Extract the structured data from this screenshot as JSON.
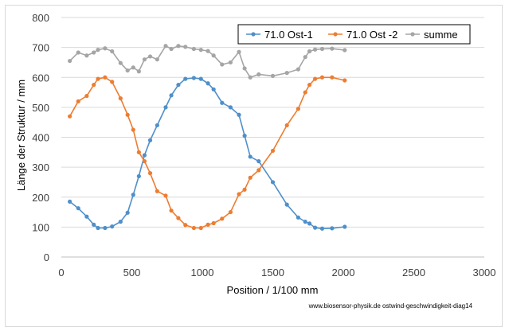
{
  "chart_data": {
    "type": "line",
    "xlabel": "Position  /  1/100 mm",
    "ylabel": "Länge der Struktur / mm",
    "xlim": [
      0,
      3000
    ],
    "ylim": [
      0,
      800
    ],
    "xticks": [
      0,
      500,
      1000,
      1500,
      2000,
      2500,
      3000
    ],
    "yticks": [
      0,
      100,
      200,
      300,
      400,
      500,
      600,
      700,
      800
    ],
    "grid": "horizontal",
    "legend_position": "top-right",
    "footnote": "www.biosensor-physik.de  ostwind-geschwindigkeit-diag14",
    "series": [
      {
        "name": "71.0 Ost-1",
        "color": "#4f8fca",
        "x": [
          60,
          120,
          180,
          230,
          260,
          310,
          360,
          420,
          470,
          510,
          550,
          590,
          630,
          680,
          740,
          780,
          830,
          880,
          940,
          990,
          1040,
          1080,
          1140,
          1200,
          1260,
          1300,
          1340,
          1400,
          1500,
          1600,
          1680,
          1730,
          1760,
          1800,
          1850,
          1920,
          2010
        ],
        "y": [
          185,
          163,
          135,
          108,
          97,
          97,
          102,
          118,
          148,
          208,
          270,
          340,
          390,
          440,
          500,
          540,
          575,
          595,
          598,
          595,
          580,
          560,
          515,
          500,
          475,
          405,
          335,
          320,
          250,
          175,
          132,
          118,
          112,
          98,
          95,
          96,
          101
        ]
      },
      {
        "name": "71.0 Ost -2",
        "color": "#ed7d31",
        "x": [
          60,
          120,
          180,
          230,
          260,
          310,
          360,
          420,
          470,
          510,
          550,
          590,
          630,
          680,
          740,
          780,
          830,
          880,
          940,
          990,
          1040,
          1080,
          1140,
          1200,
          1260,
          1300,
          1340,
          1400,
          1500,
          1600,
          1680,
          1730,
          1760,
          1800,
          1850,
          1920,
          2010
        ],
        "y": [
          470,
          520,
          538,
          575,
          595,
          600,
          585,
          530,
          475,
          425,
          350,
          320,
          280,
          220,
          205,
          155,
          130,
          107,
          97,
          97,
          108,
          113,
          128,
          150,
          210,
          225,
          265,
          290,
          355,
          440,
          495,
          550,
          575,
          595,
          600,
          600,
          590
        ]
      },
      {
        "name": "summe",
        "color": "#a5a5a5",
        "x": [
          60,
          120,
          180,
          230,
          260,
          310,
          360,
          420,
          470,
          510,
          550,
          590,
          630,
          680,
          740,
          780,
          830,
          880,
          940,
          990,
          1040,
          1080,
          1140,
          1200,
          1260,
          1300,
          1340,
          1400,
          1500,
          1600,
          1680,
          1730,
          1760,
          1800,
          1850,
          1920,
          2010
        ],
        "y": [
          655,
          683,
          673,
          683,
          692,
          697,
          687,
          648,
          623,
          633,
          620,
          660,
          670,
          660,
          705,
          695,
          705,
          702,
          695,
          692,
          688,
          673,
          643,
          650,
          685,
          630,
          600,
          610,
          605,
          615,
          627,
          668,
          687,
          693,
          695,
          696,
          691
        ]
      }
    ]
  }
}
